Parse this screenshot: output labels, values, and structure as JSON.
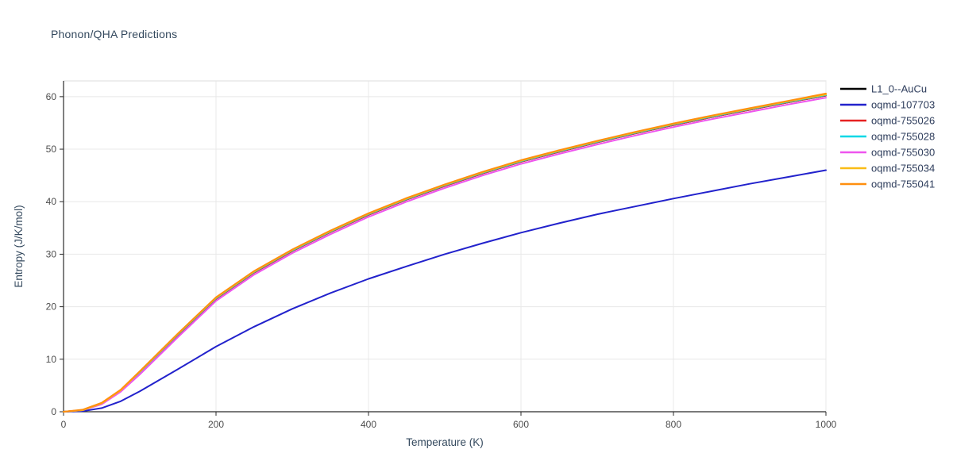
{
  "chart_data": {
    "type": "line",
    "title": "Phonon/QHA Predictions",
    "xlabel": "Temperature (K)",
    "ylabel": "Entropy (J/K/mol)",
    "xlim": [
      0,
      1000
    ],
    "ylim": [
      0,
      63
    ],
    "xticks": [
      0,
      200,
      400,
      600,
      800,
      1000
    ],
    "yticks": [
      0,
      10,
      20,
      30,
      40,
      50,
      60
    ],
    "grid": true,
    "grid_color": "#e8e8e8",
    "axis_color": "#2b2b2b",
    "legend_position": "outside-right-top",
    "x": [
      0,
      25,
      50,
      75,
      100,
      150,
      200,
      250,
      300,
      350,
      400,
      450,
      500,
      550,
      600,
      650,
      700,
      750,
      800,
      850,
      900,
      950,
      1000
    ],
    "series": [
      {
        "name": "L1_0--AuCu",
        "color": "#000000",
        "values": [
          0,
          0.3,
          1.5,
          4.0,
          7.4,
          14.6,
          21.5,
          26.5,
          30.6,
          34.2,
          37.5,
          40.4,
          43.0,
          45.4,
          47.6,
          49.5,
          51.3,
          53.0,
          54.6,
          56.1,
          57.5,
          58.9,
          60.2
        ]
      },
      {
        "name": "oqmd-107703",
        "color": "#2222cc",
        "values": [
          0,
          0.1,
          0.7,
          2.0,
          3.9,
          8.1,
          12.4,
          16.2,
          19.6,
          22.6,
          25.3,
          27.7,
          30.0,
          32.1,
          34.1,
          35.9,
          37.6,
          39.1,
          40.6,
          42.0,
          43.4,
          44.7,
          46.0
        ]
      },
      {
        "name": "oqmd-755026",
        "color": "#e62222",
        "values": [
          0,
          0.3,
          1.5,
          4.0,
          7.4,
          14.6,
          21.5,
          26.5,
          30.6,
          34.2,
          37.5,
          40.4,
          43.0,
          45.4,
          47.6,
          49.5,
          51.3,
          53.0,
          54.6,
          56.1,
          57.5,
          58.9,
          60.2
        ]
      },
      {
        "name": "oqmd-755028",
        "color": "#00d8e6",
        "values": [
          0,
          0.3,
          1.5,
          4.0,
          7.5,
          14.7,
          21.6,
          26.6,
          30.7,
          34.3,
          37.6,
          40.5,
          43.1,
          45.5,
          47.7,
          49.6,
          51.4,
          53.1,
          54.7,
          56.2,
          57.6,
          59.0,
          60.3
        ]
      },
      {
        "name": "oqmd-755030",
        "color": "#ee55ee",
        "values": [
          0,
          0.3,
          1.4,
          3.8,
          7.1,
          14.2,
          21.1,
          26.1,
          30.2,
          33.8,
          37.1,
          40.0,
          42.6,
          45.0,
          47.2,
          49.1,
          50.9,
          52.6,
          54.2,
          55.7,
          57.1,
          58.5,
          59.8
        ]
      },
      {
        "name": "oqmd-755034",
        "color": "#f9bc16",
        "values": [
          0,
          0.3,
          1.6,
          4.1,
          7.6,
          14.8,
          21.7,
          26.7,
          30.8,
          34.4,
          37.7,
          40.6,
          43.2,
          45.6,
          47.8,
          49.7,
          51.5,
          53.2,
          54.8,
          56.3,
          57.7,
          59.1,
          60.4
        ]
      },
      {
        "name": "oqmd-755041",
        "color": "#ff8f0e",
        "values": [
          0,
          0.4,
          1.7,
          4.2,
          7.7,
          14.9,
          21.8,
          26.8,
          30.9,
          34.5,
          37.8,
          40.7,
          43.3,
          45.7,
          47.9,
          49.8,
          51.6,
          53.3,
          54.9,
          56.4,
          57.8,
          59.2,
          60.6
        ]
      }
    ]
  }
}
